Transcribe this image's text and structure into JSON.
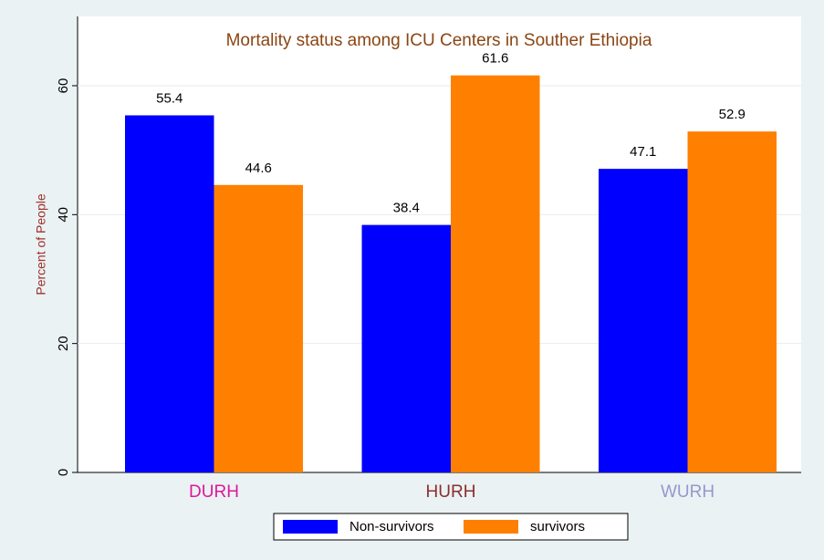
{
  "chart_data": {
    "type": "bar",
    "title": "Mortality status among ICU Centers in Souther Ethiopia",
    "y_label": "Percent of People",
    "categories": [
      "DURH",
      "HURH",
      "WURH"
    ],
    "category_colors": [
      "#e0179c",
      "#8b2e2e",
      "#9a96cc"
    ],
    "series": [
      {
        "name": "Non-survivors",
        "color": "#0000ff",
        "values": [
          55.4,
          38.4,
          47.1
        ]
      },
      {
        "name": "survivors",
        "color": "#ff8000",
        "values": [
          44.6,
          61.6,
          52.9
        ]
      }
    ],
    "ylim": [
      0,
      70
    ],
    "yticks": [
      0,
      20,
      40,
      60
    ],
    "grid": true,
    "legend": "bottom"
  }
}
